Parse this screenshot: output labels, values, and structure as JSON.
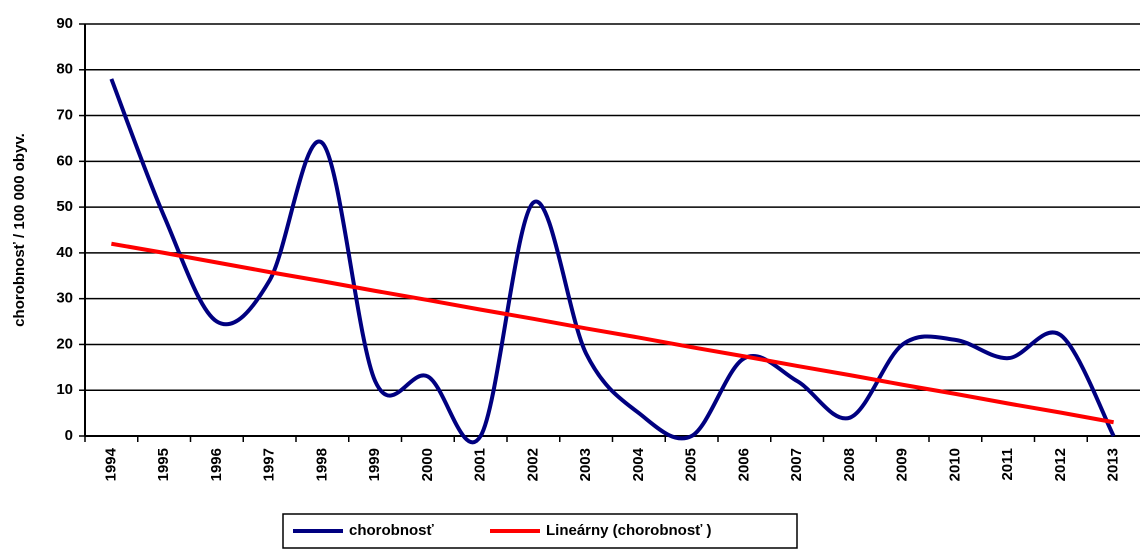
{
  "chart_data": {
    "type": "line",
    "y_label": "chorobnosť / 100 000 obyv.",
    "categories": [
      "1994",
      "1995",
      "1996",
      "1997",
      "1998",
      "1999",
      "2000",
      "2001",
      "2002",
      "2003",
      "2004",
      "2005",
      "2006",
      "2007",
      "2008",
      "2009",
      "2010",
      "2011",
      "2012",
      "2013"
    ],
    "series": [
      {
        "name": "chorobnosť",
        "color": "#000080",
        "smooth": true,
        "values": [
          78,
          48,
          25,
          34,
          64,
          12,
          13,
          0,
          51,
          18,
          5,
          0,
          17,
          12,
          4,
          20,
          21,
          17,
          22,
          0
        ]
      },
      {
        "name": "Lineárny (chorobnosť )",
        "color": "#ff0000",
        "smooth": false,
        "values": [
          42.0,
          40.0,
          37.9,
          35.8,
          33.8,
          31.7,
          29.7,
          27.6,
          25.6,
          23.5,
          21.5,
          19.4,
          17.4,
          15.3,
          13.3,
          11.2,
          9.2,
          7.1,
          5.1,
          3.0
        ]
      }
    ],
    "ylim": [
      0,
      90
    ],
    "yticks": [
      0,
      10,
      20,
      30,
      40,
      50,
      60,
      70,
      80,
      90
    ],
    "grid": true,
    "legend": "bottom"
  }
}
